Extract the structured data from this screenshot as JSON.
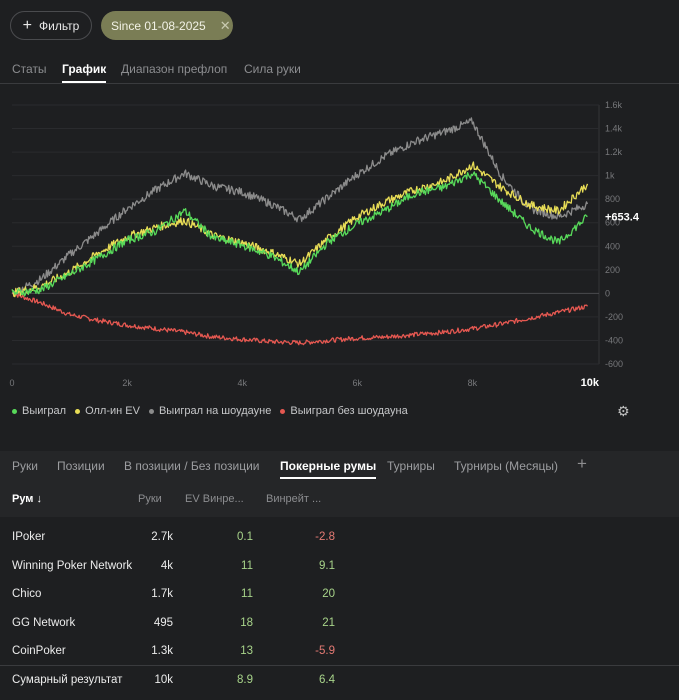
{
  "toolbar": {
    "filter_label": "Фильтр",
    "date_chip": "Since 01-08-2025",
    "date_clear": "✕"
  },
  "tabs": [
    "Статы",
    "График",
    "Диапазон префлоп",
    "Сила руки"
  ],
  "chart_data": {
    "type": "line",
    "x_ticks": [
      "0",
      "2k",
      "4k",
      "6k",
      "8k",
      "10k"
    ],
    "y_ticks": [
      "1.6k",
      "1.4k",
      "1.2k",
      "1k",
      "800",
      "600",
      "400",
      "200",
      "0",
      "-200",
      "-400",
      "-600"
    ],
    "xlim": [
      0,
      10200
    ],
    "ylim": [
      -600,
      1600
    ],
    "end_label": "+653.4",
    "series": [
      {
        "name": "Выиграл",
        "color": "#58d95a",
        "x": [
          0,
          500,
          1000,
          1500,
          2000,
          2500,
          3000,
          3500,
          4000,
          4500,
          5000,
          5500,
          6000,
          6500,
          7000,
          7500,
          8000,
          8500,
          9000,
          9500,
          10000
        ],
        "values": [
          0,
          30,
          160,
          300,
          450,
          530,
          700,
          470,
          410,
          320,
          180,
          440,
          590,
          710,
          850,
          900,
          1020,
          780,
          560,
          430,
          653
        ]
      },
      {
        "name": "Олл-ин EV",
        "color": "#e8dd56",
        "x": [
          0,
          500,
          1000,
          1500,
          2000,
          2500,
          3000,
          3500,
          4000,
          4500,
          5000,
          5500,
          6000,
          6500,
          7000,
          7500,
          8000,
          8500,
          9000,
          9500,
          10000
        ],
        "values": [
          0,
          60,
          180,
          340,
          480,
          560,
          620,
          490,
          430,
          350,
          250,
          470,
          650,
          780,
          880,
          950,
          1090,
          900,
          750,
          700,
          930
        ]
      },
      {
        "name": "Выиграл на шоудауне",
        "color": "#8b8b8b",
        "x": [
          0,
          500,
          1000,
          1500,
          2000,
          2500,
          3000,
          3500,
          4000,
          4500,
          5000,
          5500,
          6000,
          6500,
          7000,
          7500,
          8000,
          8500,
          9000,
          9500,
          10000
        ],
        "values": [
          0,
          120,
          330,
          520,
          720,
          880,
          1020,
          910,
          860,
          760,
          630,
          820,
          1010,
          1170,
          1290,
          1370,
          1460,
          1000,
          720,
          650,
          760
        ]
      },
      {
        "name": "Выиграл без шоудауна",
        "color": "#e55851",
        "x": [
          0,
          500,
          1000,
          1500,
          2000,
          2500,
          3000,
          3500,
          4000,
          4500,
          5000,
          5500,
          6000,
          6500,
          7000,
          7500,
          8000,
          8500,
          9000,
          9500,
          10000
        ],
        "values": [
          0,
          -80,
          -180,
          -230,
          -270,
          -300,
          -330,
          -370,
          -390,
          -410,
          -420,
          -400,
          -380,
          -370,
          -350,
          -330,
          -300,
          -260,
          -210,
          -160,
          -110
        ]
      }
    ]
  },
  "legend": [
    {
      "label": "Выиграл",
      "color": "#58d95a"
    },
    {
      "label": "Олл-ин EV",
      "color": "#e8dd56"
    },
    {
      "label": "Выиграл на шоудауне",
      "color": "#8b8b8b"
    },
    {
      "label": "Выиграл без шоудауна",
      "color": "#e55851"
    }
  ],
  "bottom_tabs": [
    "Руки",
    "Позиции",
    "В позиции / Без позиции",
    "Покерные румы",
    "Турниры",
    "Турниры (Месяцы)"
  ],
  "table": {
    "headers": [
      "Рум ↓",
      "Руки",
      "EV Винре...",
      "Винрейт ..."
    ],
    "rows": [
      {
        "name": "IPoker",
        "hands": "2.7k",
        "ev": "0.1",
        "wr": "-2.8"
      },
      {
        "name": "Winning Poker Network",
        "hands": "4k",
        "ev": "11",
        "wr": "9.1"
      },
      {
        "name": "Chico",
        "hands": "1.7k",
        "ev": "11",
        "wr": "20"
      },
      {
        "name": "GG Network",
        "hands": "495",
        "ev": "18",
        "wr": "21"
      },
      {
        "name": "CoinPoker",
        "hands": "1.3k",
        "ev": "13",
        "wr": "-5.9"
      }
    ],
    "total": {
      "name": "Сумарный результат",
      "hands": "10k",
      "ev": "8.9",
      "wr": "6.4"
    }
  }
}
